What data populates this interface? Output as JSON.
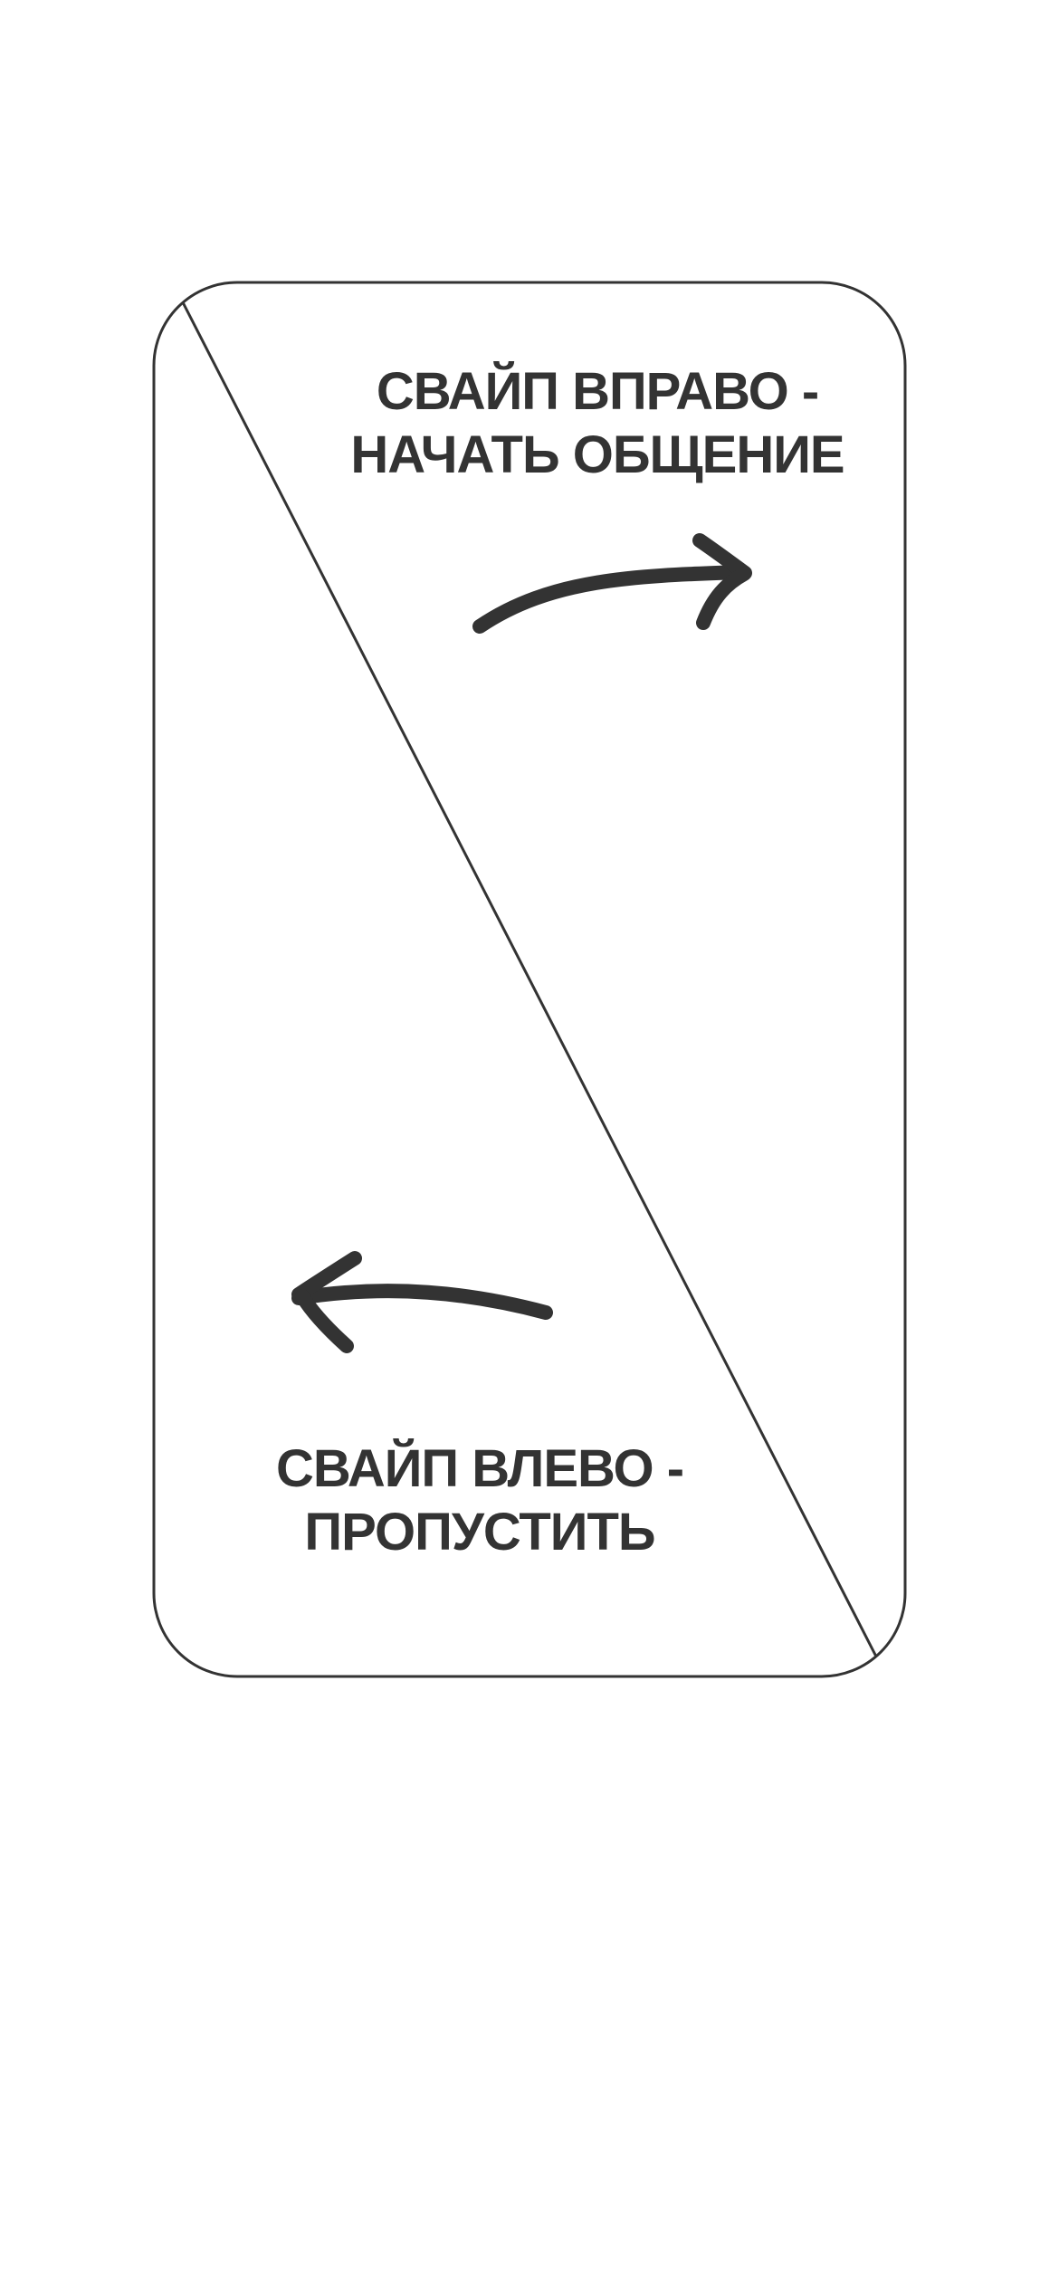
{
  "colors": {
    "background": "#ffffff",
    "ink": "#333333",
    "frame": "#333333"
  },
  "swipe_right_hint": {
    "line1": "СВАЙП ВПРАВО -",
    "line2": "НАЧАТЬ ОБЩЕНИЕ",
    "icon": "curved-arrow-right-icon"
  },
  "swipe_left_hint": {
    "line1": "СВАЙП ВЛЕВО -",
    "line2": "ПРОПУСТИТЬ",
    "icon": "curved-arrow-left-icon"
  }
}
